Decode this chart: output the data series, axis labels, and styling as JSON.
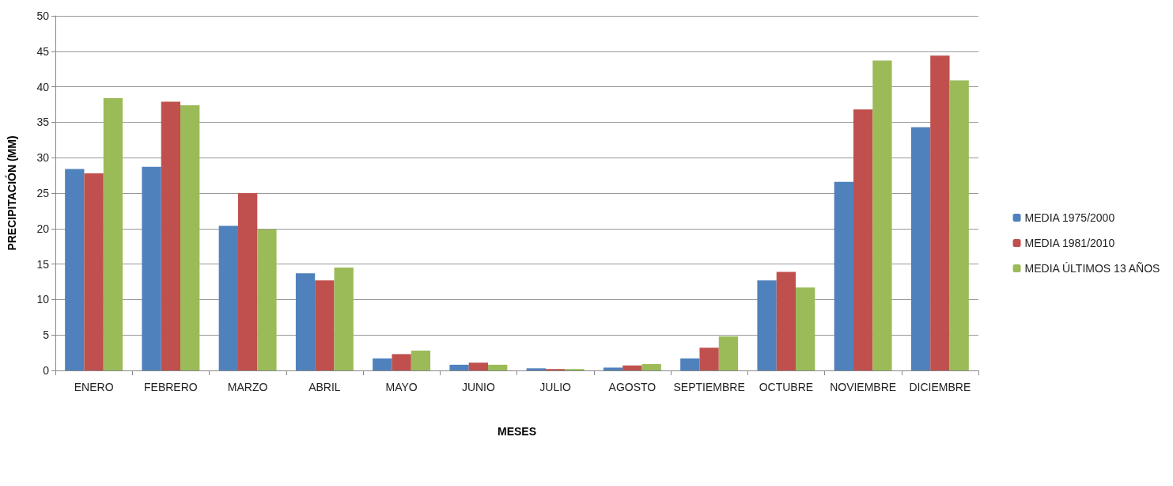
{
  "chart_data": {
    "type": "bar",
    "xlabel": "MESES",
    "ylabel": "PRECIPITACIÓN (MM)",
    "categories": [
      "ENERO",
      "FEBRERO",
      "MARZO",
      "ABRIL",
      "MAYO",
      "JUNIO",
      "JULIO",
      "AGOSTO",
      "SEPTIEMBRE",
      "OCTUBRE",
      "NOVIEMBRE",
      "DICIEMBRE"
    ],
    "series": [
      {
        "name": "MEDIA 1975/2000",
        "color": "#4f81bd",
        "values": [
          28.4,
          28.7,
          20.4,
          13.7,
          1.7,
          0.8,
          0.3,
          0.4,
          1.7,
          12.7,
          26.6,
          34.3
        ]
      },
      {
        "name": "MEDIA 1981/2010",
        "color": "#c0504d",
        "values": [
          27.8,
          37.9,
          25.0,
          12.7,
          2.3,
          1.1,
          0.2,
          0.7,
          3.2,
          13.9,
          36.8,
          44.4
        ]
      },
      {
        "name": "MEDIA ÚLTIMOS 13 AÑOS",
        "color": "#9bbb59",
        "values": [
          38.4,
          37.4,
          19.9,
          14.5,
          2.8,
          0.8,
          0.2,
          0.9,
          4.8,
          11.7,
          43.7,
          40.9
        ]
      }
    ],
    "ylim": [
      0,
      50
    ],
    "yticks": [
      0,
      5,
      10,
      15,
      20,
      25,
      30,
      35,
      40,
      45,
      50
    ],
    "grid": "y",
    "legend": "right"
  }
}
